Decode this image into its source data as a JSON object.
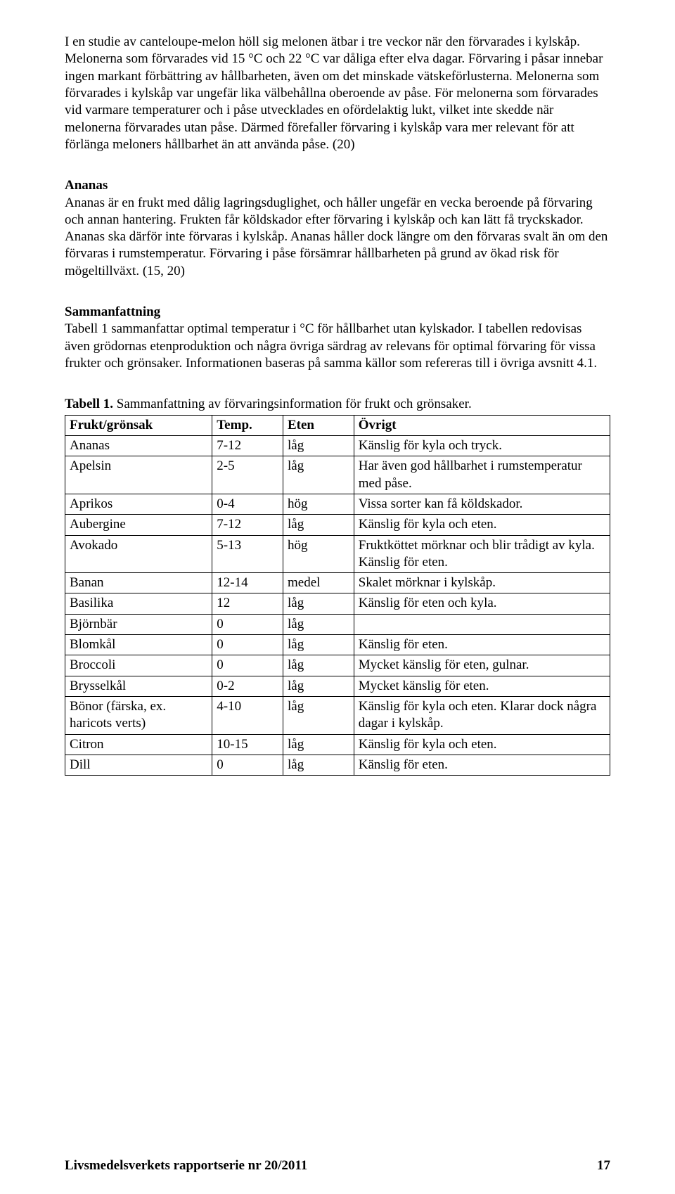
{
  "paragraphs": {
    "p1": "I en studie av canteloupe-melon höll sig melonen ätbar i tre veckor när den förvarades i kylskåp. Melonerna som förvarades vid 15 °C och 22 °C var dåliga efter elva dagar. Förvaring i påsar innebar ingen markant förbättring av hållbarheten, även om det minskade vätskeförlusterna. Melonerna som förvarades i kylskåp var ungefär lika välbehållna oberoende av påse. För melonerna som förvarades vid varmare temperaturer och i påse utvecklades en ofördelaktig lukt, vilket inte skedde när melonerna förvarades utan påse. Därmed förefaller förvaring i kylskåp vara mer relevant för att förlänga meloners hållbarhet än att använda påse. (20)",
    "ananas_head": "Ananas",
    "ananas_body": "Ananas är en frukt med dålig lagringsduglighet, och håller ungefär en vecka beroende på förvaring och annan hantering. Frukten får köldskador efter förvaring i kylskåp och kan lätt få tryckskador. Ananas ska därför inte förvaras i kylskåp. Ananas håller dock längre om den förvaras svalt än om den förvaras i rumstemperatur. Förvaring i påse försämrar hållbarheten på grund av ökad risk för mögeltillväxt. (15, 20)",
    "summary_head": "Sammanfattning",
    "summary_body": "Tabell 1 sammanfattar optimal temperatur i °C för hållbarhet utan kylskador. I tabellen redovisas även grödornas etenproduktion och några övriga särdrag av relevans för optimal förvaring för vissa frukter och grönsaker. Informationen baseras på samma källor som refereras till i övriga avsnitt 4.1."
  },
  "table": {
    "caption_label": "Tabell 1.",
    "caption_text": " Sammanfattning av förvaringsinformation för frukt och grönsaker.",
    "headers": [
      "Frukt/grönsak",
      "Temp.",
      "Eten",
      "Övrigt"
    ],
    "rows": [
      [
        "Ananas",
        "7-12",
        "låg",
        "Känslig för kyla och tryck."
      ],
      [
        "Apelsin",
        "2-5",
        "låg",
        "Har även god hållbarhet i rumstemperatur med påse."
      ],
      [
        "Aprikos",
        "0-4",
        "hög",
        "Vissa sorter kan få köldskador."
      ],
      [
        "Aubergine",
        "7-12",
        "låg",
        "Känslig för kyla och eten."
      ],
      [
        "Avokado",
        "5-13",
        "hög",
        "Fruktköttet mörknar och blir trådigt av kyla. Känslig för eten."
      ],
      [
        "Banan",
        "12-14",
        "medel",
        "Skalet mörknar i kylskåp."
      ],
      [
        "Basilika",
        "12",
        "låg",
        "Känslig för eten och kyla."
      ],
      [
        "Björnbär",
        "0",
        "låg",
        ""
      ],
      [
        "Blomkål",
        "0",
        "låg",
        "Känslig för eten."
      ],
      [
        "Broccoli",
        "0",
        "låg",
        "Mycket känslig för eten, gulnar."
      ],
      [
        "Brysselkål",
        "0-2",
        "låg",
        "Mycket känslig för eten."
      ],
      [
        "Bönor (färska, ex. haricots verts)",
        "4-10",
        "låg",
        "Känslig för kyla och eten. Klarar dock några dagar i kylskåp."
      ],
      [
        "Citron",
        "10-15",
        "låg",
        "Känslig för kyla och eten."
      ],
      [
        "Dill",
        "0",
        "låg",
        "Känslig för eten."
      ]
    ]
  },
  "footer": {
    "series": "Livsmedelsverkets rapportserie nr 20/2011",
    "page": "17"
  }
}
